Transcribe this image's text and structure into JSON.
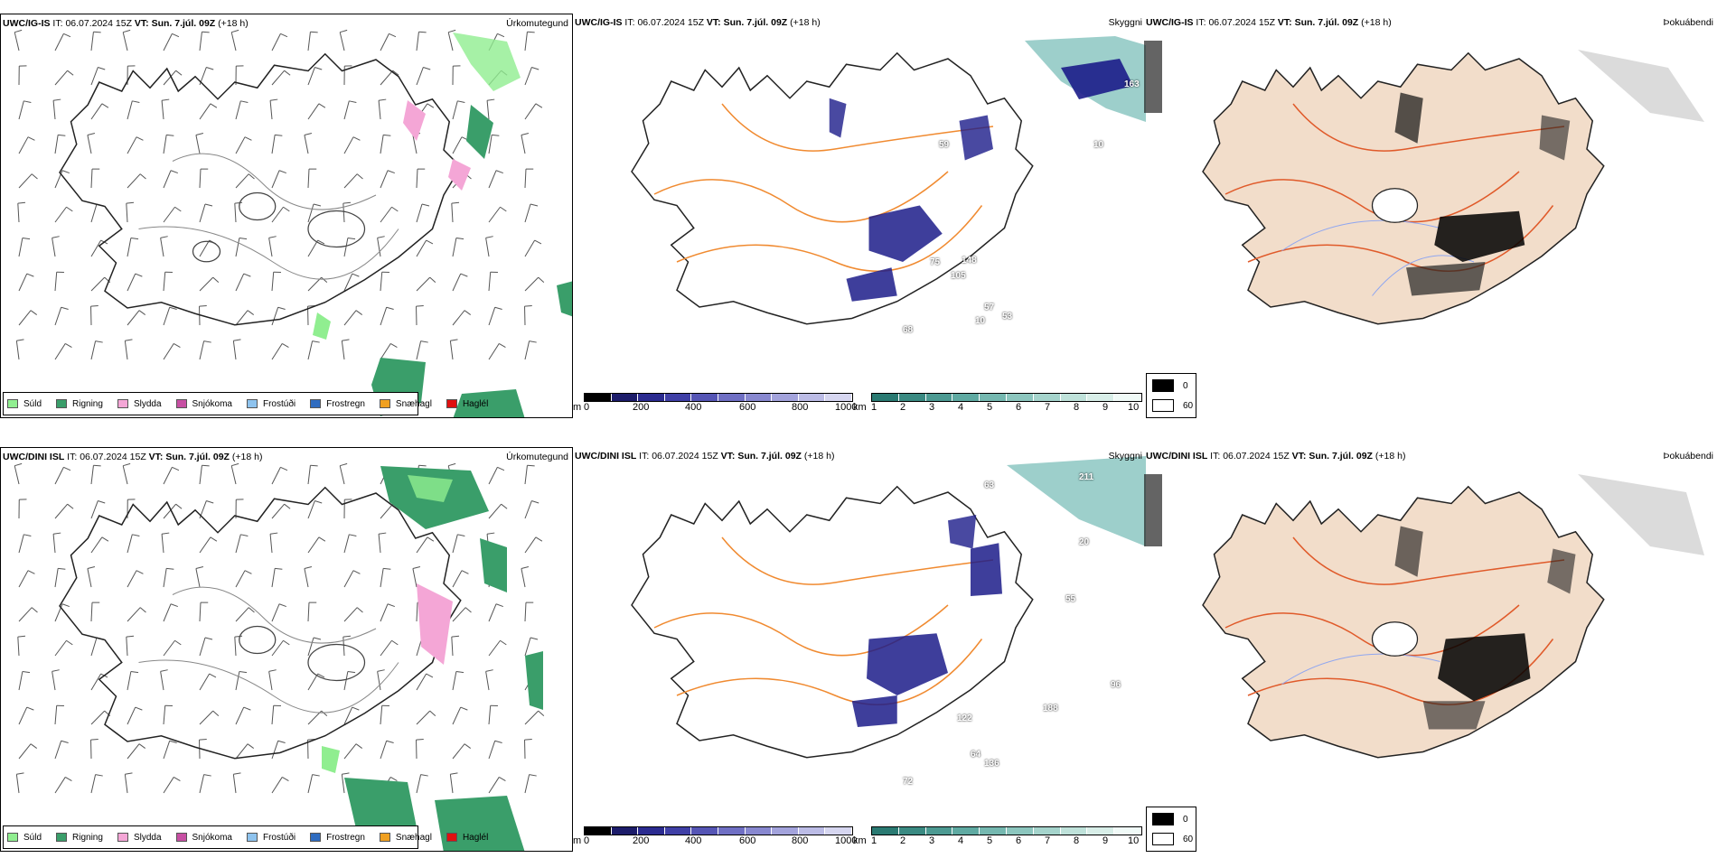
{
  "colors": {
    "suld": "#90EE90",
    "rigning": "#3a9e6a",
    "slydda": "#f4a6d6",
    "snjokoma": "#c74fa3",
    "frostudi": "#8ec3ee",
    "frostregn": "#2f6cc0",
    "snaehagl": "#f0a020",
    "hagel": "#e01010",
    "road": "#f08a30",
    "river": "#8fa6f0",
    "land_tan": "#f2ddca",
    "sky_dark": "#1c1c8a",
    "sky_teal": "#4ca8a0"
  },
  "rows": [
    {
      "model": "UWC/IG-IS",
      "it_label": "IT:",
      "it_value": "06.07.2024 15Z",
      "vt_label": "VT:",
      "vt_value": "Sun. 7.júl. 09Z",
      "lead": "(+18 h)",
      "sky_labels": [
        "163",
        "59",
        "10",
        "75",
        "148",
        "105",
        "10",
        "57",
        "53",
        "68"
      ]
    },
    {
      "model": "UWC/DINI ISL",
      "it_label": "IT:",
      "it_value": "06.07.2024 15Z",
      "vt_label": "VT:",
      "vt_value": "Sun. 7.júl. 09Z",
      "lead": "(+18 h)",
      "sky_labels": [
        "211",
        "63",
        "20",
        "55",
        "96",
        "188",
        "122",
        "64",
        "136",
        "72"
      ]
    }
  ],
  "titles": {
    "precip": "Úrkomutegund",
    "cloud": "Skyggni",
    "fog": "Þokuábendi"
  },
  "precip_legend": [
    "Súld",
    "Rigning",
    "Slydda",
    "Snjókoma",
    "Frostúði",
    "Frostregn",
    "Snæhagl",
    "Haglél"
  ],
  "cloud_bar": {
    "unit": "m",
    "ticks": [
      "0",
      "200",
      "400",
      "600",
      "800",
      "1000"
    ]
  },
  "vis_bar": {
    "unit": "km",
    "ticks": [
      "1",
      "2",
      "3",
      "4",
      "5",
      "6",
      "7",
      "8",
      "9",
      "10"
    ]
  },
  "fog_legend": [
    "0",
    "60"
  ]
}
